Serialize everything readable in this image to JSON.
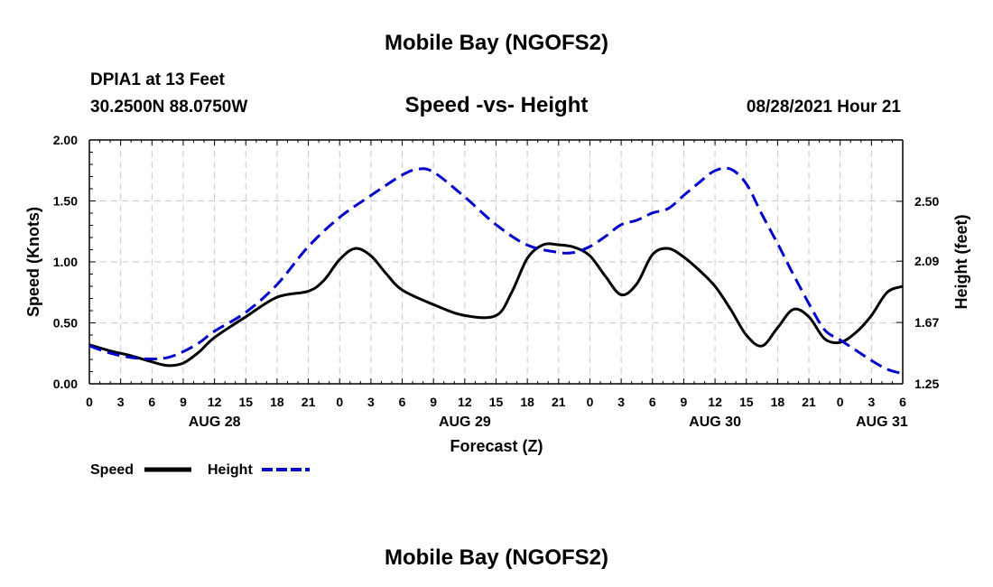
{
  "page": {
    "title_top": "Mobile Bay (NGOFS2)",
    "title_bottom": "Mobile Bay (NGOFS2)",
    "station_line": "DPIA1 at 13 Feet",
    "coords_line": "30.2500N  88.0750W",
    "date_line": "08/28/2021 Hour 21"
  },
  "chart_data": {
    "type": "line",
    "title": "Speed -vs- Height",
    "xlabel": "Forecast (Z)",
    "ylabel": "Speed (Knots)",
    "ylabel_right": "Height (feet)",
    "xlim": [
      0,
      78
    ],
    "ylim": [
      0,
      2.0
    ],
    "ylim_right": [
      1.25,
      2.92
    ],
    "grid": true,
    "x_tick_labels": [
      "0",
      "3",
      "6",
      "9",
      "12",
      "15",
      "18",
      "21",
      "0",
      "3",
      "6",
      "9",
      "12",
      "15",
      "18",
      "21",
      "0",
      "3",
      "6",
      "9",
      "12",
      "15",
      "18",
      "21",
      "0",
      "3",
      "6"
    ],
    "y_tick_labels": [
      "0.00",
      "0.50",
      "1.00",
      "1.50",
      "2.00"
    ],
    "y_right_tick_labels": [
      "1.25",
      "1.67",
      "2.09",
      "2.50"
    ],
    "y_right_tick_values": [
      1.25,
      1.67,
      2.09,
      2.5
    ],
    "day_labels": [
      {
        "hour": 12,
        "label": "AUG 28"
      },
      {
        "hour": 36,
        "label": "AUG 29"
      },
      {
        "hour": 60,
        "label": "AUG 30"
      },
      {
        "hour": 76,
        "label": "AUG 31"
      }
    ],
    "legend": [
      {
        "name": "Speed",
        "color": "#000000",
        "style": "solid"
      },
      {
        "name": "Height",
        "color": "#0000cc",
        "style": "dashed"
      }
    ],
    "series": [
      {
        "name": "Speed",
        "axis": "left",
        "color": "#000000",
        "x": [
          0,
          2,
          4,
          6,
          7.5,
          9,
          10.5,
          12,
          15,
          18,
          21,
          22.5,
          24,
          25.5,
          27,
          28.5,
          30,
          33,
          36,
          39,
          40.5,
          42,
          43.5,
          45,
          46.5,
          48,
          49.5,
          51,
          52.5,
          54,
          55.5,
          57,
          58.5,
          60,
          61.5,
          63,
          64.5,
          66,
          67.5,
          69,
          70.5,
          72,
          73.5,
          75,
          76.5,
          78
        ],
        "values": [
          0.32,
          0.27,
          0.23,
          0.18,
          0.15,
          0.17,
          0.26,
          0.38,
          0.55,
          0.71,
          0.76,
          0.85,
          1.02,
          1.11,
          1.05,
          0.9,
          0.77,
          0.65,
          0.56,
          0.56,
          0.75,
          1.03,
          1.14,
          1.14,
          1.12,
          1.05,
          0.88,
          0.73,
          0.82,
          1.06,
          1.11,
          1.04,
          0.93,
          0.8,
          0.61,
          0.4,
          0.31,
          0.46,
          0.61,
          0.55,
          0.37,
          0.34,
          0.42,
          0.56,
          0.75,
          0.8
        ]
      },
      {
        "name": "Height",
        "axis": "right",
        "color": "#0000cc",
        "x": [
          0,
          2,
          4,
          6,
          7.5,
          9,
          10.5,
          12,
          15,
          18,
          21,
          24,
          27,
          30,
          31.5,
          33,
          36,
          39,
          42,
          45,
          46.5,
          48,
          49.5,
          51,
          52.5,
          54,
          55.5,
          57,
          58.5,
          60,
          61.5,
          63,
          64.5,
          66,
          67.5,
          69,
          70.5,
          72,
          73.5,
          75,
          76.5,
          78
        ],
        "values": [
          1.51,
          1.46,
          1.43,
          1.42,
          1.43,
          1.47,
          1.53,
          1.61,
          1.74,
          1.93,
          2.19,
          2.39,
          2.54,
          2.68,
          2.72,
          2.7,
          2.53,
          2.34,
          2.2,
          2.15,
          2.15,
          2.19,
          2.26,
          2.34,
          2.37,
          2.42,
          2.45,
          2.54,
          2.63,
          2.71,
          2.72,
          2.62,
          2.41,
          2.21,
          2.0,
          1.8,
          1.62,
          1.55,
          1.48,
          1.41,
          1.35,
          1.32
        ]
      }
    ]
  }
}
